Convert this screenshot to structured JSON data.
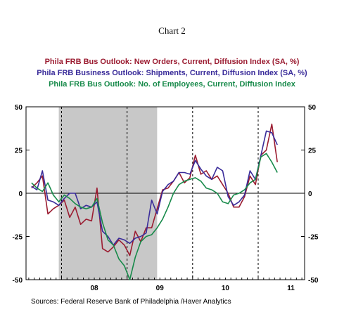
{
  "chart_data": {
    "type": "line",
    "title": "Chart 2",
    "source": "Sources:  Federal Reserve Bank of Philadelphia /Haver Analytics",
    "ylim": [
      -50,
      50
    ],
    "y_ticks": [
      50,
      25,
      0,
      -25,
      -50
    ],
    "y_tick_labels_left": [
      "50",
      "25",
      "0",
      "-25",
      "-50"
    ],
    "y_tick_labels_right": [
      "50",
      "25",
      "0",
      "-25",
      "-50"
    ],
    "x_tick_labels": [
      "08",
      "09",
      "10",
      "11"
    ],
    "recession_shading": {
      "start": "2007-12",
      "end": "2009-06",
      "color": "#c8c8c8"
    },
    "grid": "dashed vertical lines at year boundaries",
    "legend_placement": "top",
    "x": [
      "2007-07",
      "2007-08",
      "2007-09",
      "2007-10",
      "2007-11",
      "2007-12",
      "2008-01",
      "2008-02",
      "2008-03",
      "2008-04",
      "2008-05",
      "2008-06",
      "2008-07",
      "2008-08",
      "2008-09",
      "2008-10",
      "2008-11",
      "2008-12",
      "2009-01",
      "2009-02",
      "2009-03",
      "2009-04",
      "2009-05",
      "2009-06",
      "2009-07",
      "2009-08",
      "2009-09",
      "2009-10",
      "2009-11",
      "2009-12",
      "2010-01",
      "2010-02",
      "2010-03",
      "2010-04",
      "2010-05",
      "2010-06",
      "2010-07",
      "2010-08",
      "2010-09",
      "2010-10",
      "2010-11",
      "2010-12",
      "2011-01",
      "2011-02",
      "2011-03",
      "2011-04"
    ],
    "series": [
      {
        "name": "Phila FRB Bus Outlook: New Orders, Current, Diffusion Index (SA, %)",
        "color": "#9b1c31",
        "values": [
          3,
          6,
          10,
          -12,
          -9,
          -7,
          -4,
          -14,
          -8,
          -18,
          -15,
          -16,
          3,
          -32,
          -34,
          -31,
          -27,
          -30,
          -36,
          -22,
          -28,
          -20,
          -20,
          -9,
          2,
          3,
          7,
          12,
          6,
          9,
          22,
          11,
          13,
          8,
          10,
          5,
          0,
          -8,
          -8,
          -2,
          10,
          5,
          22,
          25,
          40,
          18
        ]
      },
      {
        "name": "Phila FRB Business Outlook: Shipments, Current, Diffusion Index (SA, %)",
        "color": "#3a2c9a",
        "values": [
          4,
          2,
          13,
          -4,
          -5,
          -7,
          -3,
          0,
          0,
          -9,
          -7,
          -8,
          -5,
          -22,
          -25,
          -30,
          -26,
          -27,
          -29,
          -26,
          -25,
          -23,
          -4,
          -12,
          1,
          5,
          7,
          12,
          12,
          11,
          19,
          14,
          10,
          8,
          15,
          13,
          -2,
          -7,
          -5,
          -1,
          13,
          8,
          22,
          36,
          35,
          28
        ]
      },
      {
        "name": "Phila FRB Bus Outlook: No. of Employees, Current, Diffusion Index",
        "color": "#178a4a",
        "values": [
          6,
          3,
          1,
          6,
          -1,
          -5,
          -1,
          -3,
          -6,
          -8,
          -9,
          -8,
          -3,
          -17,
          -27,
          -30,
          -38,
          -42,
          -50,
          -37,
          -28,
          -25,
          -24,
          -20,
          -15,
          -8,
          0,
          5,
          7,
          8,
          9,
          7,
          3,
          2,
          0,
          -5,
          -6,
          -1,
          0,
          2,
          6,
          8,
          21,
          23,
          18,
          12
        ]
      }
    ]
  }
}
